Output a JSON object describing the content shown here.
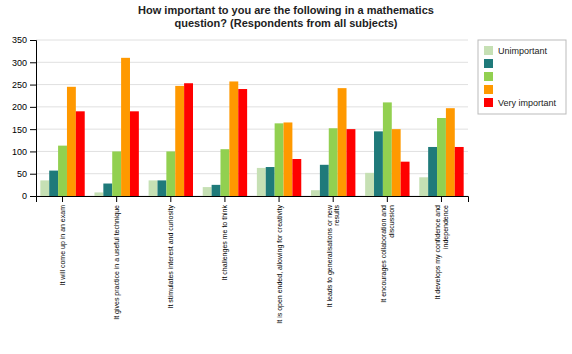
{
  "chart_data": {
    "type": "bar",
    "title": "How important to you are the following in a mathematics\nquestion? (Respondents from all subjects)",
    "categories": [
      "It will come up in an exam",
      "It gives practice in a useful technique",
      "It stimulates interest and curiosity",
      "It challenges me to think",
      "It is open ended, allowing for creativity",
      "It leads to generalisations or new\nresults",
      "It encourages collaboration and\ndiscussion",
      "It develops my confidence and\nindependence"
    ],
    "series": [
      {
        "name": "Unimportant",
        "color": "#c6e0b4",
        "values": [
          35,
          8,
          35,
          20,
          63,
          13,
          52,
          42
        ]
      },
      {
        "color": "#1f7a7a",
        "values": [
          57,
          28,
          35,
          25,
          65,
          70,
          145,
          110
        ]
      },
      {
        "color": "#92d050",
        "values": [
          113,
          100,
          100,
          105,
          163,
          152,
          210,
          175
        ]
      },
      {
        "color": "#ff9900",
        "values": [
          245,
          310,
          247,
          257,
          165,
          242,
          150,
          197
        ]
      },
      {
        "name": "Very important",
        "color": "#ff0000",
        "values": [
          190,
          190,
          253,
          240,
          83,
          150,
          77,
          110
        ]
      }
    ],
    "ylim": [
      0,
      350
    ],
    "yticks": [
      0,
      50,
      100,
      150,
      200,
      250,
      300,
      350
    ],
    "grid": true,
    "legend": "top-right"
  }
}
